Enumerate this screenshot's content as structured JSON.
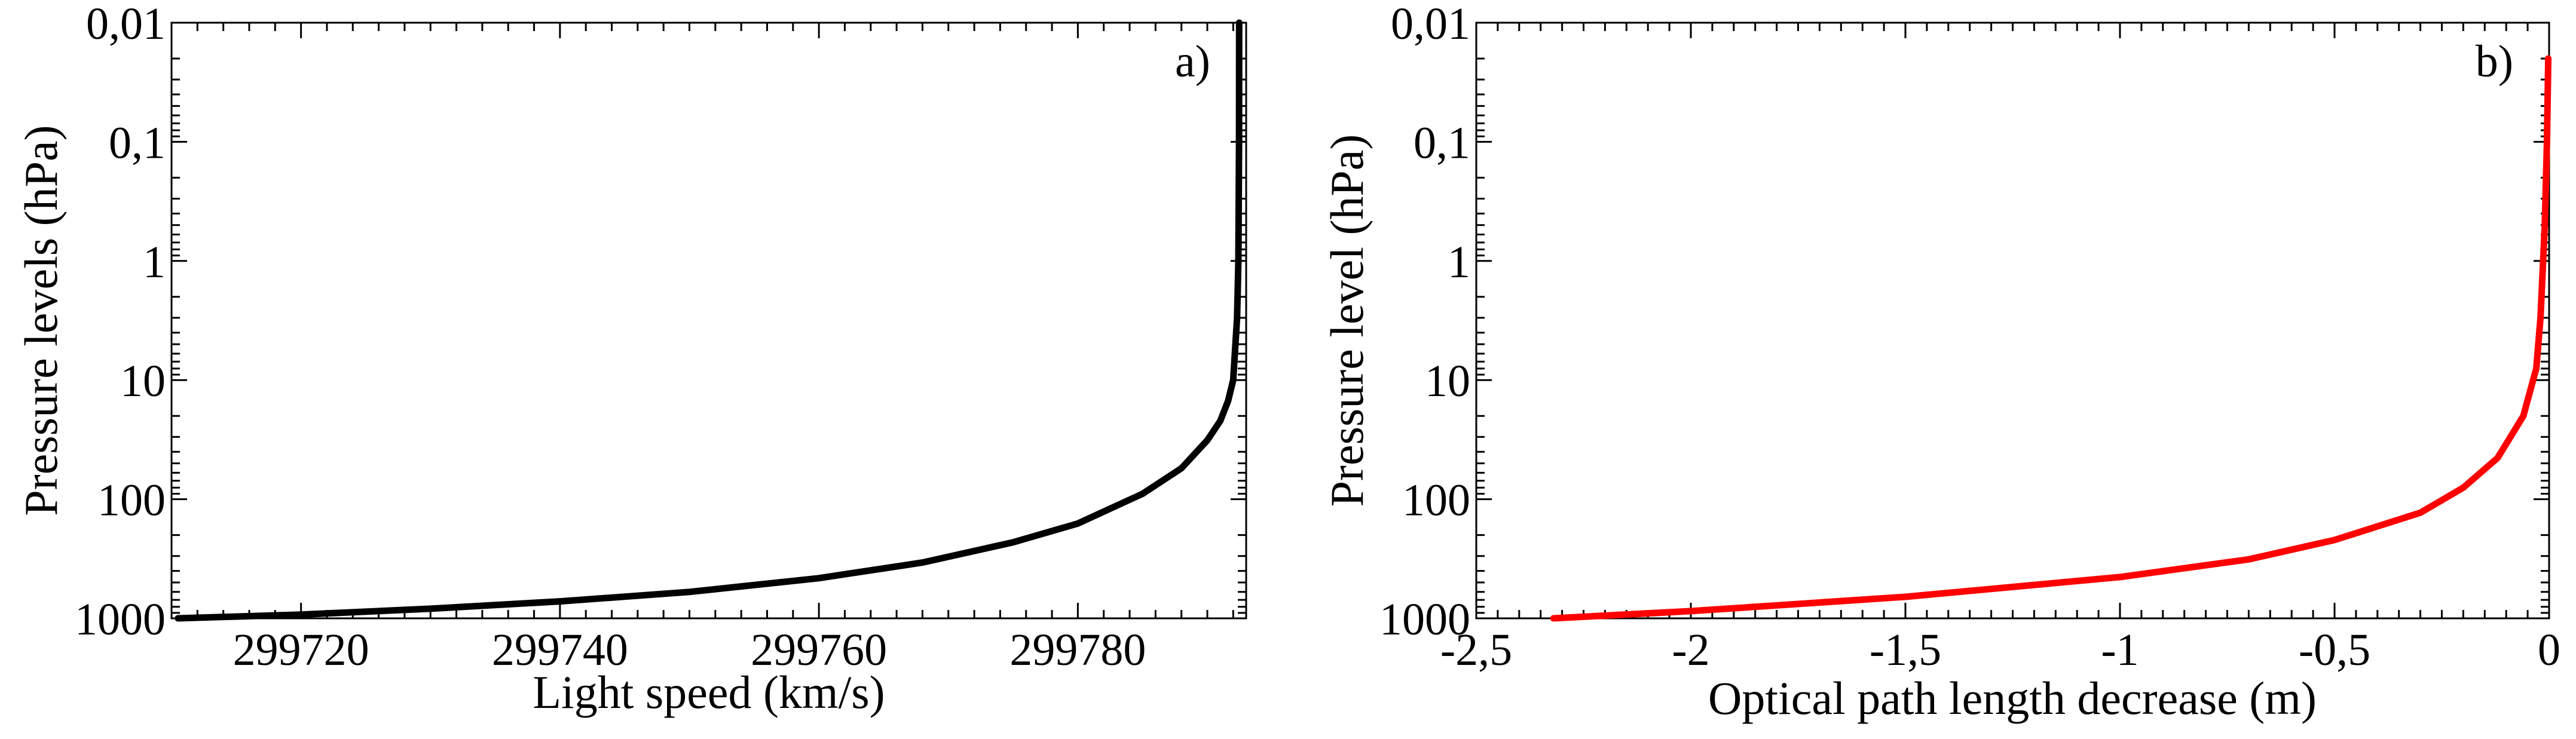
{
  "chart_data": [
    {
      "type": "line",
      "panel_label": "a)",
      "xlabel": "Light speed (km/s)",
      "ylabel": "Pressure levels (hPa)",
      "xlim": [
        299710,
        299793
      ],
      "x_ticks": [
        299720,
        299740,
        299760,
        299780
      ],
      "x_tick_labels": [
        "299720",
        "299740",
        "299760",
        "299780"
      ],
      "yscale": "log",
      "y_reversed": true,
      "ylim": [
        1000,
        0.01
      ],
      "y_ticks": [
        0.01,
        0.1,
        1,
        10,
        100,
        1000
      ],
      "y_tick_labels": [
        "0,01",
        "0,1",
        "1",
        "10",
        "100",
        "1000"
      ],
      "series": [
        {
          "name": "light speed",
          "color": "#000000",
          "points": [
            [
              299710.5,
              1000
            ],
            [
              299720,
              930
            ],
            [
              299730,
              830
            ],
            [
              299740,
              720
            ],
            [
              299750,
              600
            ],
            [
              299760,
              460
            ],
            [
              299768,
              340
            ],
            [
              299775,
              230
            ],
            [
              299780,
              160
            ],
            [
              299785,
              90
            ],
            [
              299788,
              55
            ],
            [
              299790,
              32
            ],
            [
              299791,
              22
            ],
            [
              299791.6,
              15
            ],
            [
              299792,
              10
            ],
            [
              299792.3,
              3
            ],
            [
              299792.4,
              1
            ],
            [
              299792.45,
              0.1
            ],
            [
              299792.46,
              0.01
            ]
          ]
        }
      ]
    },
    {
      "type": "line",
      "panel_label": "b)",
      "xlabel": "Optical path length decrease (m)",
      "ylabel": "Pressure level (hPa)",
      "xlim": [
        -2.5,
        0
      ],
      "x_ticks": [
        -2.5,
        -2,
        -1.5,
        -1,
        -0.5,
        0
      ],
      "x_tick_labels": [
        "-2,5",
        "-2",
        "-1,5",
        "-1",
        "-0,5",
        "0"
      ],
      "yscale": "log",
      "y_reversed": true,
      "ylim": [
        1000,
        0.01
      ],
      "y_ticks": [
        0.01,
        0.1,
        1,
        10,
        100,
        1000
      ],
      "y_tick_labels": [
        "0,01",
        "0,1",
        "1",
        "10",
        "100",
        "1000"
      ],
      "series": [
        {
          "name": "optical path length decrease",
          "color": "#ff0000",
          "points": [
            [
              -2.32,
              1000
            ],
            [
              -2.0,
              870
            ],
            [
              -1.5,
              660
            ],
            [
              -1.0,
              450
            ],
            [
              -0.7,
              320
            ],
            [
              -0.5,
              220
            ],
            [
              -0.3,
              130
            ],
            [
              -0.2,
              80
            ],
            [
              -0.12,
              45
            ],
            [
              -0.06,
              20
            ],
            [
              -0.03,
              8
            ],
            [
              -0.02,
              3
            ],
            [
              -0.01,
              0.5
            ],
            [
              -0.005,
              0.1
            ],
            [
              -0.002,
              0.02
            ]
          ]
        }
      ]
    }
  ]
}
